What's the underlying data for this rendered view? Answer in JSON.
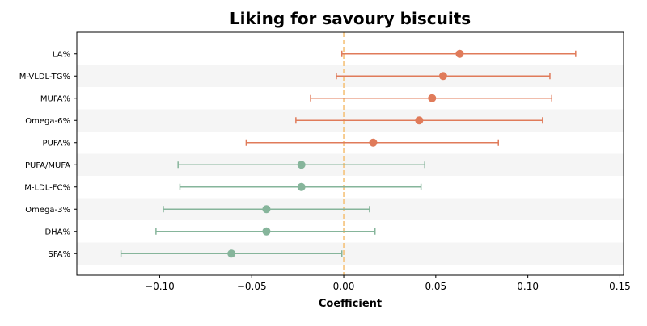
{
  "chart_data": {
    "type": "forest",
    "title": "Liking for savoury biscuits",
    "xlabel": "Coefficient",
    "ylabel": "",
    "xlim": [
      -0.145,
      0.152
    ],
    "xticks": [
      -0.1,
      -0.05,
      0.0,
      0.05,
      0.1,
      0.15
    ],
    "xtick_labels": [
      "−0.10",
      "−0.05",
      "0.00",
      "0.05",
      "0.10",
      "0.15"
    ],
    "reference_line": {
      "x": 0.0,
      "color": "#f5c27a",
      "style": "dashed"
    },
    "band_color": "#f5f5f5",
    "positive_color": "#e07b5a",
    "negative_color": "#86b59b",
    "categories": [
      "LA%",
      "M-VLDL-TG%",
      "MUFA%",
      "Omega-6%",
      "PUFA%",
      "PUFA/MUFA",
      "M-LDL-FC%",
      "Omega-3%",
      "DHA%",
      "SFA%"
    ],
    "estimates": [
      0.063,
      0.054,
      0.048,
      0.041,
      0.016,
      -0.023,
      -0.023,
      -0.042,
      -0.042,
      -0.061
    ],
    "ci_lower": [
      -0.001,
      -0.004,
      -0.018,
      -0.026,
      -0.053,
      -0.09,
      -0.089,
      -0.098,
      -0.102,
      -0.121
    ],
    "ci_upper": [
      0.126,
      0.112,
      0.113,
      0.108,
      0.084,
      0.044,
      0.042,
      0.014,
      0.017,
      -0.001
    ]
  }
}
